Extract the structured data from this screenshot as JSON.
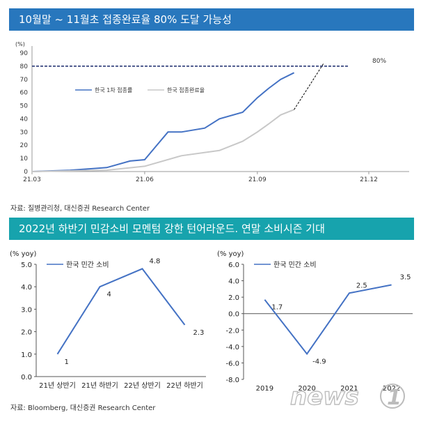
{
  "banner_top": "10월말 ~ 11월초 접종완료율 80% 도달 가능성",
  "source_top": "자료: 질병관리청, 대신증권 Research Center",
  "banner_bottom": "2022년 하반기 민감소비 모멘텀 강한 턴어라운드. 연말 소비시즌 기대",
  "source_bottom": "자료: Bloomberg, 대신증권 Research Center",
  "watermark": "news1",
  "colors": {
    "banner_top": "#2877bd",
    "banner_bottom": "#17a3ad",
    "series_blue": "#4472c4",
    "series_gray": "#c8c8c8"
  },
  "chart_data": [
    {
      "type": "line",
      "unit_label": "(%)",
      "ylim": [
        0,
        90
      ],
      "yticks": [
        "0",
        "10",
        "20",
        "30",
        "40",
        "50",
        "60",
        "70",
        "80",
        "90"
      ],
      "xticks": [
        "21.03",
        "21.06",
        "21.09",
        "21.12"
      ],
      "series": [
        {
          "name": "한국 1차 접종률",
          "style": "solid",
          "color": "#4472c4",
          "x": [
            "21.03",
            "21.04",
            "21.05",
            "21.05.20",
            "21.06",
            "21.06.10",
            "21.06.20",
            "21.07",
            "21.07.20",
            "21.08",
            "21.08.20",
            "21.09",
            "21.09.10",
            "21.09.20",
            "21.10"
          ],
          "values": [
            0,
            1,
            3,
            8,
            9,
            19,
            30,
            30,
            33,
            40,
            45,
            56,
            63,
            70,
            75
          ]
        },
        {
          "name": "한국 접종완료율",
          "style": "solid",
          "color": "#c8c8c8",
          "x": [
            "21.03",
            "21.05",
            "21.06",
            "21.07",
            "21.08",
            "21.08.20",
            "21.09",
            "21.09.10",
            "21.09.20",
            "21.10"
          ],
          "values": [
            0,
            1,
            4,
            12,
            16,
            23,
            30,
            36,
            43,
            47
          ]
        },
        {
          "name": "접종완료율 추세",
          "style": "dashed",
          "color": "#000000",
          "x": [
            "21.10",
            "21.10.25"
          ],
          "values": [
            47,
            82
          ]
        }
      ],
      "reference_line": {
        "value": 80,
        "label": "80%"
      }
    },
    {
      "type": "line",
      "unit_label": "(% yoy)",
      "ylim": [
        0.0,
        5.0
      ],
      "yticks": [
        "0.0",
        "1.0",
        "2.0",
        "3.0",
        "4.0",
        "5.0"
      ],
      "categories": [
        "21년 상반기",
        "21년 하반기",
        "22년 상반기",
        "22년 하반기"
      ],
      "series": [
        {
          "name": "한국 민간 소비",
          "values": [
            1,
            4,
            4.8,
            2.3
          ]
        }
      ],
      "data_labels": [
        "1",
        "4",
        "4.8",
        "2.3"
      ]
    },
    {
      "type": "line",
      "unit_label": "(% yoy)",
      "ylim": [
        -8.0,
        6.0
      ],
      "yticks": [
        "-8.0",
        "-6.0",
        "-4.0",
        "-2.0",
        "0.0",
        "2.0",
        "4.0",
        "6.0"
      ],
      "categories": [
        "2019",
        "2020",
        "2021",
        "2022"
      ],
      "series": [
        {
          "name": "한국 민간 소비",
          "values": [
            1.7,
            -4.9,
            2.5,
            3.5
          ]
        }
      ],
      "data_labels": [
        "1.7",
        "-4.9",
        "2.5",
        "3.5"
      ]
    }
  ]
}
